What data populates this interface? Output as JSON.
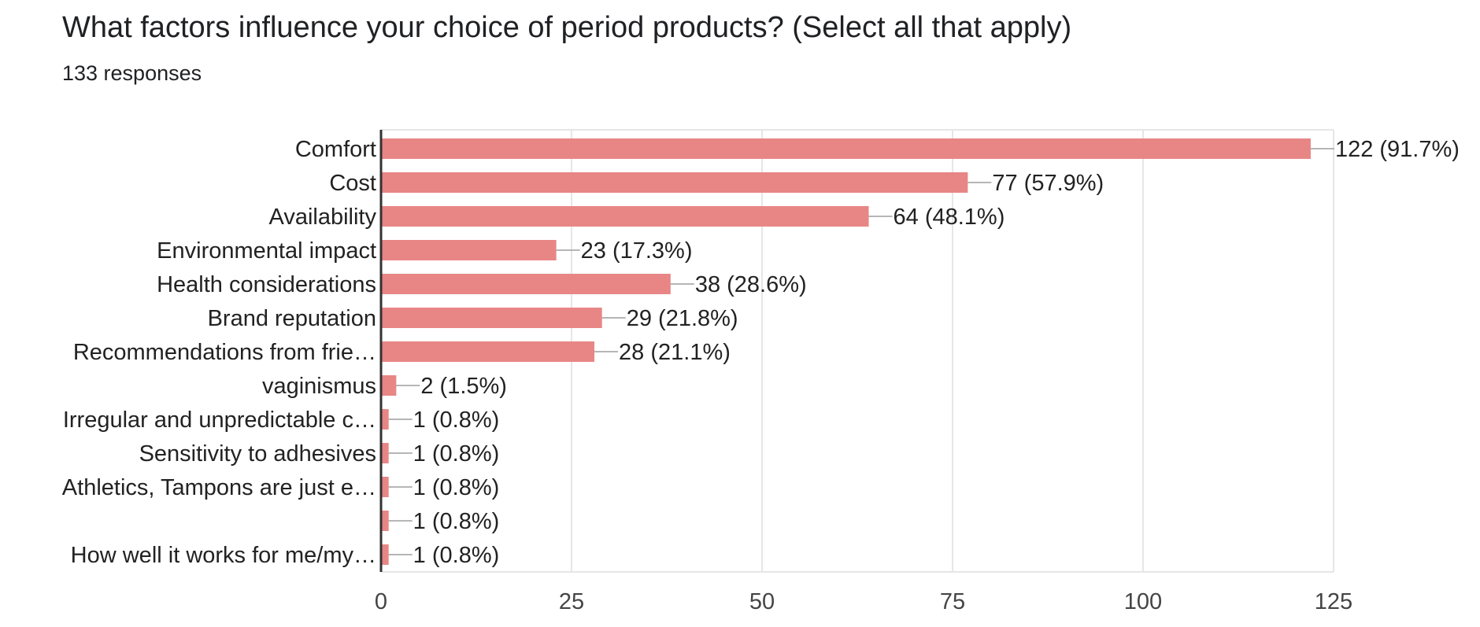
{
  "header": {
    "question": "What factors influence your choice of period products? (Select all that apply)",
    "responses": "133 responses"
  },
  "colors": {
    "bar": "#e88686",
    "grid": "#e6e6e6",
    "axis": "#333333",
    "leader": "#9e9e9e"
  },
  "chart_data": {
    "type": "bar",
    "orientation": "horizontal",
    "categories": [
      "Comfort",
      "Cost",
      "Availability",
      "Environmental impact",
      "Health considerations",
      "Brand reputation",
      "Recommendations from frie…",
      "vaginismus",
      "Irregular and unpredictable c…",
      "Sensitivity to adhesives",
      "Athletics, Tampons are just e…",
      "",
      "How well it works for me/my…"
    ],
    "values": [
      122,
      77,
      64,
      23,
      38,
      29,
      28,
      2,
      1,
      1,
      1,
      1,
      1
    ],
    "value_labels": [
      "122 (91.7%)",
      "77 (57.9%)",
      "64 (48.1%)",
      "23 (17.3%)",
      "38 (28.6%)",
      "29 (21.8%)",
      "28 (21.1%)",
      "2 (1.5%)",
      "1 (0.8%)",
      "1 (0.8%)",
      "1 (0.8%)",
      "1 (0.8%)",
      "1 (0.8%)"
    ],
    "xlim": [
      0,
      125
    ],
    "xticks": [
      0,
      25,
      50,
      75,
      100,
      125
    ],
    "grid": true,
    "legend": "none"
  }
}
